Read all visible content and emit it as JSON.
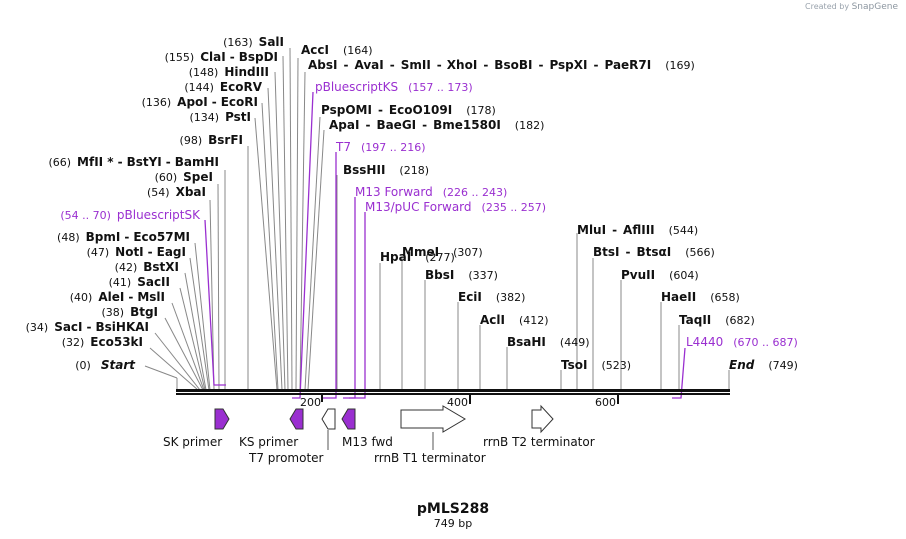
{
  "credit": {
    "prefix": "Created by",
    "brand": "SnapGene"
  },
  "title": "pMLS288",
  "length_label": "749 bp",
  "ticks": [
    "200",
    "400",
    "600"
  ],
  "ends": {
    "start": "Start",
    "start_pos": "(0)",
    "end": "End",
    "end_pos": "(749)"
  },
  "left_labels": [
    {
      "pos": "(163)",
      "parts": [
        "SalI"
      ]
    },
    {
      "pos": "(155)",
      "parts": [
        "ClaI",
        "BspDI"
      ]
    },
    {
      "pos": "(148)",
      "parts": [
        "HindIII"
      ]
    },
    {
      "pos": "(144)",
      "parts": [
        "EcoRV"
      ]
    },
    {
      "pos": "(136)",
      "parts": [
        "ApoI",
        "EcoRI"
      ]
    },
    {
      "pos": "(134)",
      "parts": [
        "PstI"
      ]
    },
    {
      "pos": "(98)",
      "parts": [
        "BsrFI"
      ]
    },
    {
      "pos": "(66)",
      "parts": [
        "MfII *",
        "BstYI",
        "BamHI"
      ]
    },
    {
      "pos": "(60)",
      "parts": [
        "SpeI"
      ]
    },
    {
      "pos": "(54)",
      "parts": [
        "XbaI"
      ]
    },
    {
      "pos": "(48)",
      "parts": [
        "BpmI",
        "Eco57MI"
      ]
    },
    {
      "pos": "(47)",
      "parts": [
        "NotI",
        "EagI"
      ]
    },
    {
      "pos": "(42)",
      "parts": [
        "BstXI"
      ]
    },
    {
      "pos": "(41)",
      "parts": [
        "SacII"
      ]
    },
    {
      "pos": "(40)",
      "parts": [
        "AleI",
        "MslI"
      ]
    },
    {
      "pos": "(38)",
      "parts": [
        "BtgI"
      ]
    },
    {
      "pos": "(34)",
      "parts": [
        "SacI",
        "BsiHKAI"
      ]
    },
    {
      "pos": "(32)",
      "parts": [
        "Eco53kI"
      ]
    }
  ],
  "left_primer": {
    "pos": "(54 .. 70)",
    "name": "pBluescriptSK"
  },
  "right_labels": [
    {
      "pos": "(164)",
      "parts": [
        "AccI"
      ]
    },
    {
      "pos": "(169)",
      "parts": [
        "AbsI",
        "AvaI",
        "SmII",
        "XhoI",
        "BsoBI",
        "PspXI",
        "PaeR7I"
      ]
    },
    {
      "pos": "(178)",
      "parts": [
        "PspOMI",
        "EcoO109I"
      ]
    },
    {
      "pos": "(182)",
      "parts": [
        "ApaI",
        "BaeGI",
        "Bme1580I"
      ]
    },
    {
      "pos": "(218)",
      "parts": [
        "BssHII"
      ]
    },
    {
      "pos": "(277)",
      "parts": [
        "HpaI"
      ]
    },
    {
      "pos": "(307)",
      "parts": [
        "MmeI"
      ]
    },
    {
      "pos": "(337)",
      "parts": [
        "BbsI"
      ]
    },
    {
      "pos": "(382)",
      "parts": [
        "EciI"
      ]
    },
    {
      "pos": "(412)",
      "parts": [
        "AclI"
      ]
    },
    {
      "pos": "(449)",
      "parts": [
        "BsaHI"
      ]
    },
    {
      "pos": "(523)",
      "parts": [
        "TsoI"
      ]
    },
    {
      "pos": "(544)",
      "parts": [
        "MluI",
        "AflIII"
      ]
    },
    {
      "pos": "(566)",
      "parts": [
        "BtsI",
        "BtsαI"
      ]
    },
    {
      "pos": "(604)",
      "parts": [
        "PvuII"
      ]
    },
    {
      "pos": "(658)",
      "parts": [
        "HaeII"
      ]
    },
    {
      "pos": "(682)",
      "parts": [
        "TaqII"
      ]
    }
  ],
  "right_primers": [
    {
      "name": "pBluescriptKS",
      "pos": "(157 .. 173)"
    },
    {
      "name": "T7",
      "pos": "(197 .. 216)"
    },
    {
      "name": "M13 Forward",
      "pos": "(226 .. 243)"
    },
    {
      "name": "M13/pUC Forward",
      "pos": "(235 .. 257)"
    },
    {
      "name": "L4440",
      "pos": "(670 .. 687)"
    }
  ],
  "features": [
    {
      "name": "SK primer"
    },
    {
      "name": "KS primer"
    },
    {
      "name": "T7 promoter"
    },
    {
      "name": "M13 fwd"
    },
    {
      "name": "rrnB T1 terminator"
    },
    {
      "name": "rrnB T2 terminator"
    }
  ],
  "colors": {
    "primer": "#9a2fd0",
    "arrow_fill": "#9a2fd0",
    "line": "#888888",
    "backbone": "#111111"
  }
}
